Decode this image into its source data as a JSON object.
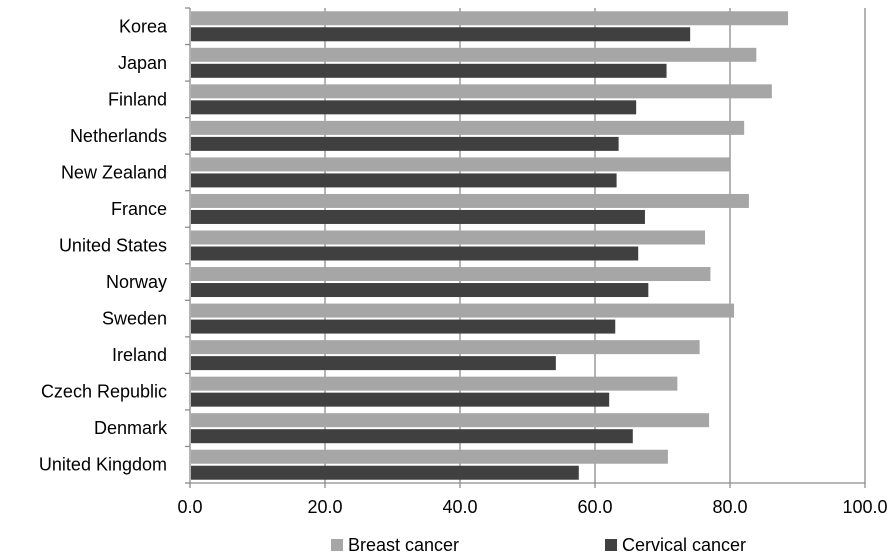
{
  "chart_data": {
    "type": "bar",
    "orientation": "horizontal",
    "categories": [
      "Korea",
      "Japan",
      "Finland",
      "Netherlands",
      "New Zealand",
      "France",
      "United States",
      "Norway",
      "Sweden",
      "Ireland",
      "Czech Republic",
      "Denmark",
      "United Kingdom"
    ],
    "series": [
      {
        "name": "Breast cancer",
        "color": "#a6a6a6",
        "values": [
          88.6,
          83.9,
          86.2,
          82.1,
          79.9,
          82.8,
          76.3,
          77.1,
          80.6,
          75.5,
          72.2,
          76.9,
          70.8
        ]
      },
      {
        "name": "Cervical cancer",
        "color": "#404040",
        "values": [
          74.1,
          70.6,
          66.1,
          63.5,
          63.2,
          67.4,
          66.4,
          67.9,
          63.0,
          54.2,
          62.1,
          65.6,
          57.6
        ]
      }
    ],
    "xlim": [
      0,
      100
    ],
    "xticks": [
      "0.0",
      "20.0",
      "40.0",
      "60.0",
      "80.0",
      "100.0"
    ],
    "xtick_values": [
      0,
      20,
      40,
      60,
      80,
      100
    ],
    "grid": "vertical",
    "legend": "bottom",
    "title": "",
    "xlabel": "",
    "ylabel": ""
  }
}
